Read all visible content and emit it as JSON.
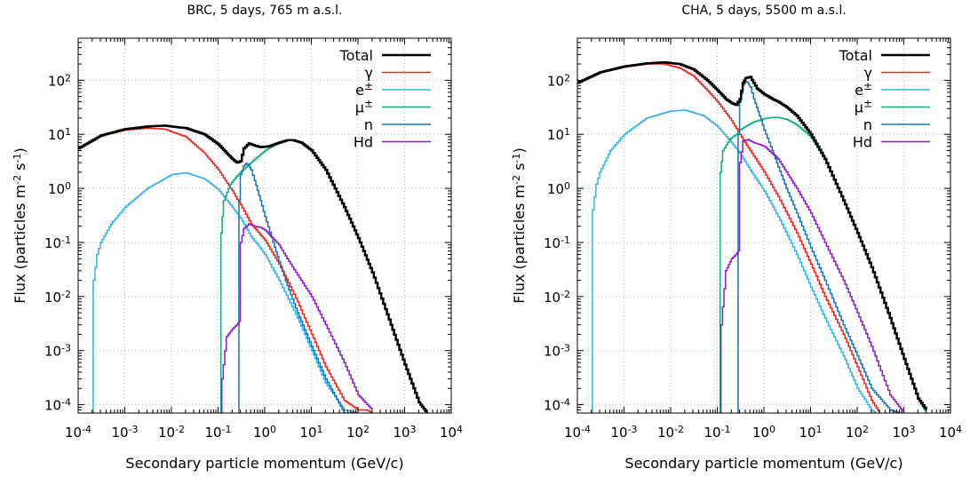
{
  "chart_data": [
    {
      "type": "line",
      "title": "BRC, 5 days, 765 m a.s.l.",
      "xlabel": "Secondary particle momentum (GeV/c)",
      "ylabel": "Flux (particles m-2 s-1)",
      "ylabel_parts": {
        "pre": "Flux (particles m",
        "sup1": "-2",
        "mid": " s",
        "sup2": "-1",
        "post": ")"
      },
      "x_scale": "log",
      "y_scale": "log",
      "xlim": [
        0.0001,
        10000
      ],
      "ylim": [
        7e-05,
        600
      ],
      "x_ticks": [
        {
          "value": 0.0001,
          "base": "10",
          "exp": "-4"
        },
        {
          "value": 0.001,
          "base": "10",
          "exp": "-3"
        },
        {
          "value": 0.01,
          "base": "10",
          "exp": "-2"
        },
        {
          "value": 0.1,
          "base": "10",
          "exp": "-1"
        },
        {
          "value": 1,
          "base": "10",
          "exp": "0"
        },
        {
          "value": 10,
          "base": "10",
          "exp": "1"
        },
        {
          "value": 100,
          "base": "10",
          "exp": "2"
        },
        {
          "value": 1000,
          "base": "10",
          "exp": "3"
        },
        {
          "value": 10000,
          "base": "10",
          "exp": "4"
        }
      ],
      "y_ticks": [
        {
          "value": 0.0001,
          "base": "10",
          "exp": "-4"
        },
        {
          "value": 0.001,
          "base": "10",
          "exp": "-3"
        },
        {
          "value": 0.01,
          "base": "10",
          "exp": "-2"
        },
        {
          "value": 0.1,
          "base": "10",
          "exp": "-1"
        },
        {
          "value": 1,
          "base": "10",
          "exp": "0"
        },
        {
          "value": 10,
          "base": "10",
          "exp": "1"
        },
        {
          "value": 100,
          "base": "10",
          "exp": "2"
        }
      ],
      "grid": true,
      "legend_position": "top-right",
      "series": [
        {
          "name": "Total",
          "label": {
            "base": "Total",
            "sup": ""
          },
          "color": "#000000",
          "width": 2.5,
          "x": [
            0.0001,
            0.0003,
            0.001,
            0.003,
            0.007,
            0.02,
            0.05,
            0.1,
            0.15,
            0.2,
            0.25,
            0.3,
            0.35,
            0.45,
            0.6,
            0.8,
            1.2,
            2,
            3,
            4,
            6,
            10,
            20,
            50,
            100,
            200,
            500,
            1000,
            2000,
            3000
          ],
          "y": [
            5.5,
            9.5,
            12.5,
            14,
            14.5,
            13,
            10,
            6.5,
            4.5,
            3.5,
            3.0,
            3.2,
            5.5,
            6.8,
            6.2,
            5.8,
            6.0,
            7.0,
            7.8,
            7.8,
            7.0,
            5.0,
            2.2,
            0.45,
            0.12,
            0.028,
            0.003,
            0.00055,
            0.00011,
            7e-05
          ]
        },
        {
          "name": "γ",
          "label": {
            "base": "γ",
            "sup": ""
          },
          "color": "#e8251e",
          "width": 1.5,
          "x": [
            0.0001,
            0.0003,
            0.001,
            0.003,
            0.007,
            0.02,
            0.05,
            0.1,
            0.2,
            0.3,
            0.5,
            1,
            2,
            5,
            10,
            20,
            50,
            100,
            150,
            200
          ],
          "y": [
            5.5,
            9.5,
            12,
            13,
            12.5,
            9,
            4.5,
            2.2,
            0.9,
            0.5,
            0.22,
            0.11,
            0.04,
            0.008,
            0.002,
            0.0005,
            0.00012,
            8e-05,
            8e-05,
            7e-05
          ]
        },
        {
          "name": "e±",
          "label": {
            "base": "e",
            "sup": "±"
          },
          "color": "#38b1e8",
          "width": 1.5,
          "x": [
            0.0002,
            0.00021,
            0.00025,
            0.0003,
            0.0005,
            0.001,
            0.003,
            0.01,
            0.02,
            0.05,
            0.1,
            0.2,
            0.3,
            0.5,
            1,
            2,
            5,
            10,
            20,
            50,
            100
          ],
          "y": [
            7e-05,
            0.02,
            0.06,
            0.1,
            0.22,
            0.45,
            1.0,
            1.8,
            1.95,
            1.5,
            0.95,
            0.45,
            0.28,
            0.13,
            0.06,
            0.02,
            0.004,
            0.001,
            0.00025,
            8e-05,
            7e-05
          ]
        },
        {
          "name": "μ±",
          "label": {
            "base": "μ",
            "sup": "±"
          },
          "color": "#12a97d",
          "width": 1.5,
          "x": [
            0.11,
            0.115,
            0.13,
            0.18,
            0.25,
            0.3,
            0.5,
            1,
            2,
            3,
            4,
            6,
            10,
            20,
            50,
            100,
            200,
            500,
            1000,
            2000,
            3000
          ],
          "y": [
            7e-05,
            0.15,
            0.6,
            1.2,
            1.7,
            2.0,
            3.0,
            5.0,
            7.2,
            7.8,
            7.8,
            7.0,
            5.0,
            2.2,
            0.45,
            0.12,
            0.028,
            0.003,
            0.00055,
            0.00011,
            7e-05
          ]
        },
        {
          "name": "n",
          "label": {
            "base": "n",
            "sup": ""
          },
          "color": "#1872b2",
          "width": 1.5,
          "x": [
            0.27,
            0.28,
            0.3,
            0.35,
            0.4,
            0.45,
            0.5,
            0.6,
            0.8,
            1,
            1.5,
            2,
            3,
            5,
            10,
            20,
            50,
            100
          ],
          "y": [
            7e-05,
            0.6,
            1.8,
            2.6,
            2.9,
            2.7,
            2.2,
            1.4,
            0.6,
            0.3,
            0.1,
            0.045,
            0.016,
            0.005,
            0.0012,
            0.0003,
            7e-05,
            7e-05
          ]
        },
        {
          "name": "Hd",
          "label": {
            "base": "Hd",
            "sup": ""
          },
          "color": "#8e1ac6",
          "width": 1.5,
          "x": [
            0.11,
            0.12,
            0.15,
            0.2,
            0.25,
            0.28,
            0.3,
            0.35,
            0.45,
            0.6,
            0.8,
            1,
            2,
            3,
            5,
            10,
            20,
            50,
            100,
            200
          ],
          "y": [
            7e-05,
            0.0003,
            0.0018,
            0.0025,
            0.003,
            0.0035,
            0.1,
            0.18,
            0.22,
            0.2,
            0.19,
            0.17,
            0.09,
            0.05,
            0.025,
            0.01,
            0.003,
            0.0006,
            0.00015,
            8e-05
          ]
        }
      ]
    },
    {
      "type": "line",
      "title": "CHA, 5 days, 5500 m a.s.l.",
      "xlabel": "Secondary particle momentum (GeV/c)",
      "ylabel": "Flux (particles m-2 s-1)",
      "ylabel_parts": {
        "pre": "Flux (particles m",
        "sup1": "-2",
        "mid": " s",
        "sup2": "-1",
        "post": ")"
      },
      "x_scale": "log",
      "y_scale": "log",
      "xlim": [
        0.0001,
        10000
      ],
      "ylim": [
        7e-05,
        600
      ],
      "x_ticks": [
        {
          "value": 0.0001,
          "base": "10",
          "exp": "-4"
        },
        {
          "value": 0.001,
          "base": "10",
          "exp": "-3"
        },
        {
          "value": 0.01,
          "base": "10",
          "exp": "-2"
        },
        {
          "value": 0.1,
          "base": "10",
          "exp": "-1"
        },
        {
          "value": 1,
          "base": "10",
          "exp": "0"
        },
        {
          "value": 10,
          "base": "10",
          "exp": "1"
        },
        {
          "value": 100,
          "base": "10",
          "exp": "2"
        },
        {
          "value": 1000,
          "base": "10",
          "exp": "3"
        },
        {
          "value": 10000,
          "base": "10",
          "exp": "4"
        }
      ],
      "y_ticks": [
        {
          "value": 0.0001,
          "base": "10",
          "exp": "-4"
        },
        {
          "value": 0.001,
          "base": "10",
          "exp": "-3"
        },
        {
          "value": 0.01,
          "base": "10",
          "exp": "-2"
        },
        {
          "value": 0.1,
          "base": "10",
          "exp": "-1"
        },
        {
          "value": 1,
          "base": "10",
          "exp": "0"
        },
        {
          "value": 10,
          "base": "10",
          "exp": "1"
        },
        {
          "value": 100,
          "base": "10",
          "exp": "2"
        }
      ],
      "grid": true,
      "legend_position": "top-right",
      "series": [
        {
          "name": "Total",
          "label": {
            "base": "Total",
            "sup": ""
          },
          "color": "#000000",
          "width": 2.5,
          "x": [
            0.0001,
            0.0003,
            0.001,
            0.003,
            0.007,
            0.015,
            0.03,
            0.06,
            0.1,
            0.15,
            0.2,
            0.25,
            0.3,
            0.35,
            0.4,
            0.5,
            0.7,
            1,
            1.5,
            2,
            3,
            5,
            10,
            20,
            50,
            100,
            200,
            500,
            1000,
            2000,
            3000
          ],
          "y": [
            90,
            140,
            180,
            205,
            215,
            200,
            160,
            100,
            65,
            45,
            38,
            35,
            45,
            90,
            110,
            115,
            70,
            55,
            45,
            40,
            32,
            22,
            10,
            3.5,
            0.6,
            0.15,
            0.035,
            0.004,
            0.0007,
            0.00013,
            8e-05
          ]
        },
        {
          "name": "γ",
          "label": {
            "base": "γ",
            "sup": ""
          },
          "color": "#e8251e",
          "width": 1.5,
          "x": [
            0.0001,
            0.0003,
            0.001,
            0.003,
            0.007,
            0.015,
            0.03,
            0.06,
            0.1,
            0.2,
            0.3,
            0.5,
            1,
            2,
            5,
            10,
            20,
            50,
            100,
            200,
            300
          ],
          "y": [
            90,
            140,
            175,
            200,
            200,
            170,
            120,
            65,
            40,
            18,
            10,
            5,
            2.0,
            0.7,
            0.15,
            0.04,
            0.01,
            0.002,
            0.0005,
            0.00012,
            7e-05
          ]
        },
        {
          "name": "e±",
          "label": {
            "base": "e",
            "sup": "±"
          },
          "color": "#38b1e8",
          "width": 1.5,
          "x": [
            0.0002,
            0.00021,
            0.00025,
            0.0003,
            0.0005,
            0.001,
            0.003,
            0.01,
            0.02,
            0.05,
            0.1,
            0.2,
            0.3,
            0.5,
            1,
            2,
            5,
            10,
            20,
            50,
            100,
            200,
            250
          ],
          "y": [
            7e-05,
            0.4,
            1.2,
            2.0,
            5,
            10,
            20,
            27,
            28,
            22,
            14,
            7,
            4.5,
            2.2,
            0.9,
            0.3,
            0.06,
            0.015,
            0.004,
            0.0008,
            0.0002,
            8e-05,
            7e-05
          ]
        },
        {
          "name": "μ±",
          "label": {
            "base": "μ",
            "sup": "±"
          },
          "color": "#12a97d",
          "width": 1.5,
          "x": [
            0.11,
            0.115,
            0.13,
            0.18,
            0.25,
            0.3,
            0.4,
            0.6,
            1,
            1.5,
            2,
            3,
            5,
            10,
            20,
            50,
            100,
            200,
            500,
            1000,
            2000,
            3000
          ],
          "y": [
            7e-05,
            2.0,
            5,
            8,
            10,
            12,
            14,
            17,
            19.5,
            20.5,
            20.5,
            19,
            15,
            9,
            3.5,
            0.6,
            0.15,
            0.035,
            0.004,
            0.0007,
            0.00013,
            7e-05
          ]
        },
        {
          "name": "n",
          "label": {
            "base": "n",
            "sup": ""
          },
          "color": "#1872b2",
          "width": 1.5,
          "x": [
            0.27,
            0.28,
            0.3,
            0.35,
            0.4,
            0.45,
            0.5,
            0.6,
            0.8,
            1,
            1.5,
            2,
            3,
            5,
            10,
            20,
            50,
            100,
            200,
            500,
            800
          ],
          "y": [
            7e-05,
            10,
            40,
            80,
            95,
            90,
            75,
            45,
            22,
            12,
            5,
            2.5,
            1.0,
            0.35,
            0.08,
            0.02,
            0.003,
            0.0008,
            0.0002,
            8e-05,
            7e-05
          ]
        },
        {
          "name": "Hd",
          "label": {
            "base": "Hd",
            "sup": ""
          },
          "color": "#8e1ac6",
          "width": 1.5,
          "x": [
            0.11,
            0.12,
            0.15,
            0.2,
            0.25,
            0.28,
            0.3,
            0.35,
            0.45,
            0.6,
            0.8,
            1,
            2,
            3,
            5,
            10,
            20,
            50,
            100,
            200,
            500,
            1000
          ],
          "y": [
            7e-05,
            0.003,
            0.03,
            0.05,
            0.06,
            0.07,
            3.0,
            7.5,
            8.0,
            7.0,
            6.5,
            6.0,
            3.5,
            2.0,
            1.0,
            0.35,
            0.1,
            0.02,
            0.005,
            0.0012,
            0.00015,
            7e-05
          ]
        }
      ]
    }
  ]
}
